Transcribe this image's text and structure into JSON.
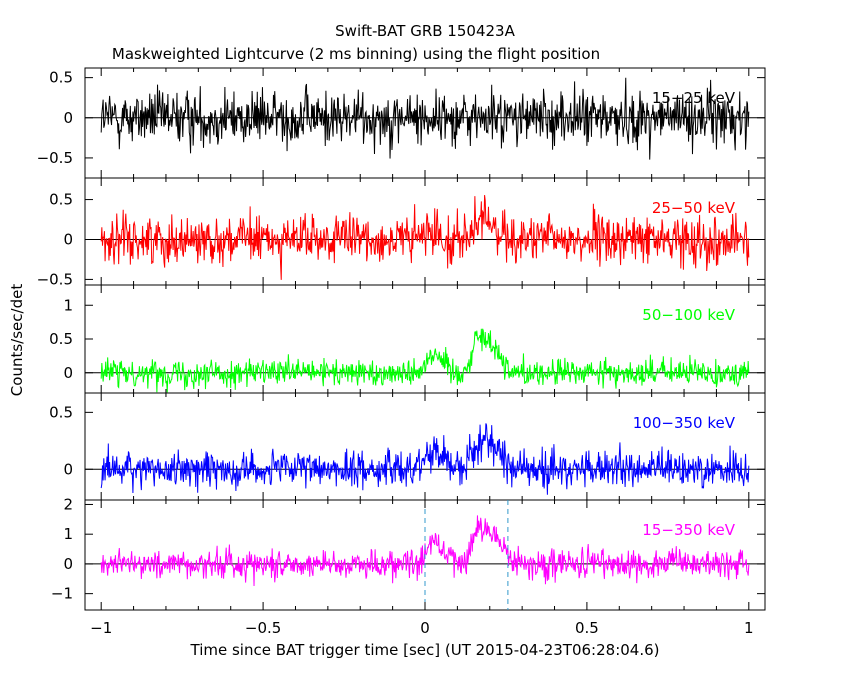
{
  "chart_data": {
    "type": "line",
    "title": "Swift-BAT GRB 150423A",
    "subtitle": "Maskweighted Lightcurve (2 ms binning) using the flight position",
    "xlabel": "Time since BAT trigger time [sec] (UT 2015-04-23T06:28:04.6)",
    "ylabel": "Counts/sec/det",
    "xlim": [
      -1.05,
      1.05
    ],
    "x_ticks": [
      -1,
      -0.5,
      0,
      0.5,
      1
    ],
    "x_tick_labels": [
      "−1",
      "−0.5",
      "0",
      "0.5",
      "1"
    ],
    "bin_width_sec": 0.002,
    "data_range": [
      -1.0,
      1.0
    ],
    "grid": false,
    "dashed_markers_x": [
      0.0,
      0.256
    ],
    "panels": [
      {
        "band": "15−25 keV",
        "color": "#000000",
        "ylim": [
          -0.75,
          0.62
        ],
        "y_ticks": [
          -0.5,
          0,
          0.5
        ],
        "y_tick_labels": [
          "−0.5",
          "0",
          "0.5"
        ],
        "noise_sigma": 0.17,
        "pulses": []
      },
      {
        "band": "25−50 keV",
        "color": "#ff0000",
        "ylim": [
          -0.57,
          0.77
        ],
        "y_ticks": [
          -0.5,
          0,
          0.5
        ],
        "y_tick_labels": [
          "−0.5",
          "0",
          "0.5"
        ],
        "noise_sigma": 0.15,
        "pulses": [
          {
            "t": 0.03,
            "width": 0.03,
            "amp": 0.08
          },
          {
            "t": 0.19,
            "width": 0.035,
            "amp": 0.22
          }
        ]
      },
      {
        "band": "50−100 keV",
        "color": "#00ff00",
        "ylim": [
          -0.3,
          1.3
        ],
        "y_ticks": [
          0,
          0.5,
          1
        ],
        "y_tick_labels": [
          "0",
          "0.5",
          "1"
        ],
        "noise_sigma": 0.1,
        "pulses": [
          {
            "t": 0.03,
            "width": 0.025,
            "amp": 0.3
          },
          {
            "t": 0.16,
            "width": 0.015,
            "amp": 0.35
          },
          {
            "t": 0.2,
            "width": 0.03,
            "amp": 0.45
          }
        ]
      },
      {
        "band": "100−350 keV",
        "color": "#0000ff",
        "ylim": [
          -0.27,
          0.67
        ],
        "y_ticks": [
          0,
          0.5
        ],
        "y_tick_labels": [
          "0",
          "0.5"
        ],
        "noise_sigma": 0.08,
        "pulses": [
          {
            "t": 0.03,
            "width": 0.03,
            "amp": 0.18
          },
          {
            "t": 0.19,
            "width": 0.035,
            "amp": 0.28
          }
        ]
      },
      {
        "band": "15−350 keV",
        "color": "#ff00ff",
        "ylim": [
          -1.55,
          2.15
        ],
        "y_ticks": [
          -1,
          0,
          1,
          2
        ],
        "y_tick_labels": [
          "−1",
          "0",
          "1",
          "2"
        ],
        "noise_sigma": 0.25,
        "pulses": [
          {
            "t": 0.03,
            "width": 0.03,
            "amp": 0.7
          },
          {
            "t": 0.16,
            "width": 0.015,
            "amp": 0.6
          },
          {
            "t": 0.2,
            "width": 0.035,
            "amp": 1.1
          }
        ]
      }
    ]
  }
}
